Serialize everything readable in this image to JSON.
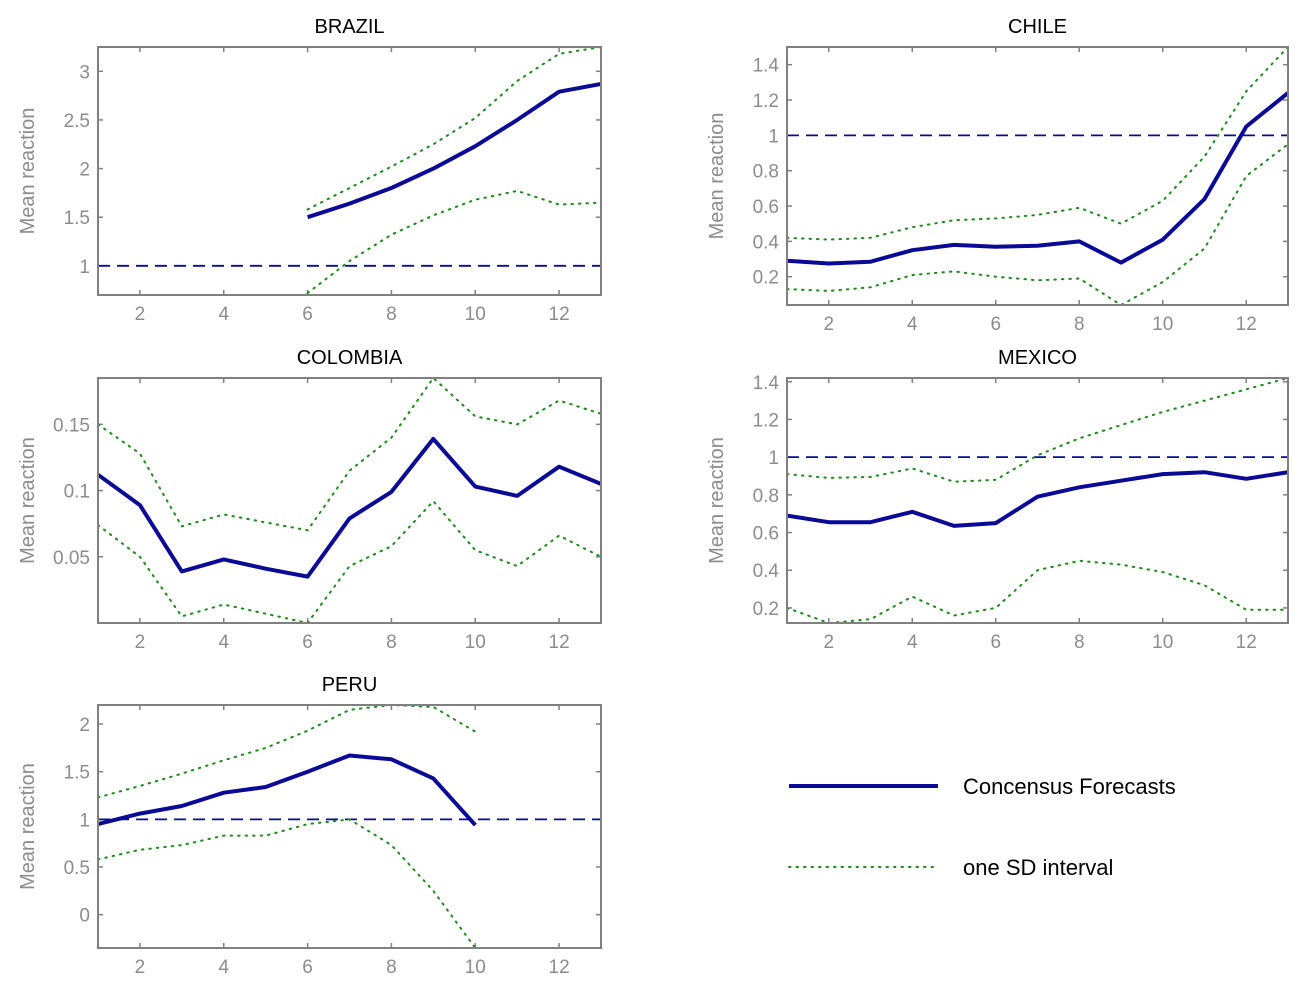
{
  "colors": {
    "main_line": "#0a0a96",
    "ref_line": "#0a0a96",
    "band": "#1a8a1a",
    "axes": "#808080",
    "tick_text": "#8c8c8c"
  },
  "legend": {
    "items": [
      {
        "label": "Concensus Forecasts",
        "style": "solid"
      },
      {
        "label": "one SD interval",
        "style": "dotted"
      }
    ]
  },
  "chart_data": [
    {
      "type": "line",
      "title": "BRAZIL",
      "ylabel": "Mean reaction",
      "xlim": [
        1,
        13
      ],
      "ylim": [
        0.7,
        3.25
      ],
      "xticks": [
        2,
        4,
        6,
        8,
        10,
        12
      ],
      "yticks": [
        1,
        1.5,
        2,
        2.5,
        3
      ],
      "reference": 1,
      "series": [
        {
          "role": "mean",
          "x": [
            6,
            7,
            8,
            9,
            10,
            11,
            12,
            13
          ],
          "y": [
            1.5,
            1.64,
            1.8,
            2.0,
            2.23,
            2.5,
            2.79,
            2.87
          ]
        },
        {
          "role": "upper",
          "x": [
            6,
            7,
            8,
            9,
            10,
            11,
            12,
            13
          ],
          "y": [
            1.58,
            1.8,
            2.02,
            2.25,
            2.52,
            2.9,
            3.18,
            3.25
          ]
        },
        {
          "role": "lower",
          "x": [
            6,
            7,
            8,
            9,
            10,
            11,
            12,
            13
          ],
          "y": [
            0.72,
            1.05,
            1.32,
            1.52,
            1.68,
            1.77,
            1.63,
            1.65
          ]
        }
      ]
    },
    {
      "type": "line",
      "title": "CHILE",
      "ylabel": "Mean reaction",
      "xlim": [
        1,
        13
      ],
      "ylim": [
        0.04,
        1.5
      ],
      "xticks": [
        2,
        4,
        6,
        8,
        10,
        12
      ],
      "yticks": [
        0.2,
        0.4,
        0.6,
        0.8,
        1,
        1.2,
        1.4
      ],
      "reference": 1,
      "series": [
        {
          "role": "mean",
          "x": [
            1,
            2,
            3,
            4,
            5,
            6,
            7,
            8,
            9,
            10,
            11,
            12,
            13
          ],
          "y": [
            0.29,
            0.275,
            0.285,
            0.35,
            0.38,
            0.37,
            0.375,
            0.4,
            0.28,
            0.41,
            0.64,
            1.05,
            1.24
          ]
        },
        {
          "role": "upper",
          "x": [
            1,
            2,
            3,
            4,
            5,
            6,
            7,
            8,
            9,
            10,
            11,
            12,
            13
          ],
          "y": [
            0.42,
            0.41,
            0.42,
            0.48,
            0.52,
            0.53,
            0.55,
            0.59,
            0.5,
            0.63,
            0.88,
            1.25,
            1.5
          ]
        },
        {
          "role": "lower",
          "x": [
            1,
            2,
            3,
            4,
            5,
            6,
            7,
            8,
            9,
            10,
            11,
            12,
            13
          ],
          "y": [
            0.13,
            0.12,
            0.14,
            0.21,
            0.23,
            0.2,
            0.18,
            0.19,
            0.04,
            0.17,
            0.36,
            0.77,
            0.95
          ]
        }
      ]
    },
    {
      "type": "line",
      "title": "COLOMBIA",
      "ylabel": "Mean reaction",
      "xlim": [
        1,
        13
      ],
      "ylim": [
        0.0,
        0.185
      ],
      "xticks": [
        2,
        4,
        6,
        8,
        10,
        12
      ],
      "yticks": [
        0.05,
        0.1,
        0.15
      ],
      "series": [
        {
          "role": "mean",
          "x": [
            1,
            2,
            3,
            4,
            5,
            6,
            7,
            8,
            9,
            10,
            11,
            12,
            13
          ],
          "y": [
            0.112,
            0.089,
            0.039,
            0.048,
            0.041,
            0.035,
            0.079,
            0.099,
            0.139,
            0.103,
            0.096,
            0.118,
            0.105
          ]
        },
        {
          "role": "upper",
          "x": [
            1,
            2,
            3,
            4,
            5,
            6,
            7,
            8,
            9,
            10,
            11,
            12,
            13
          ],
          "y": [
            0.15,
            0.128,
            0.073,
            0.082,
            0.076,
            0.07,
            0.115,
            0.14,
            0.185,
            0.156,
            0.15,
            0.168,
            0.158
          ]
        },
        {
          "role": "lower",
          "x": [
            1,
            2,
            3,
            4,
            5,
            6,
            7,
            8,
            9,
            10,
            11,
            12,
            13
          ],
          "y": [
            0.074,
            0.05,
            0.005,
            0.014,
            0.007,
            0.0,
            0.043,
            0.058,
            0.092,
            0.055,
            0.043,
            0.066,
            0.05
          ]
        }
      ]
    },
    {
      "type": "line",
      "title": "MEXICO",
      "ylabel": "Mean reaction",
      "xlim": [
        1,
        13
      ],
      "ylim": [
        0.12,
        1.42
      ],
      "xticks": [
        2,
        4,
        6,
        8,
        10,
        12
      ],
      "yticks": [
        0.2,
        0.4,
        0.6,
        0.8,
        1,
        1.2,
        1.4
      ],
      "reference": 1,
      "series": [
        {
          "role": "mean",
          "x": [
            1,
            2,
            3,
            4,
            5,
            6,
            7,
            8,
            9,
            10,
            11,
            12,
            13
          ],
          "y": [
            0.69,
            0.655,
            0.655,
            0.71,
            0.635,
            0.65,
            0.79,
            0.84,
            0.875,
            0.91,
            0.92,
            0.885,
            0.92
          ]
        },
        {
          "role": "upper",
          "x": [
            1,
            2,
            3,
            4,
            5,
            6,
            7,
            8,
            9,
            10,
            11,
            12,
            13
          ],
          "y": [
            0.91,
            0.89,
            0.895,
            0.94,
            0.87,
            0.88,
            1.01,
            1.1,
            1.17,
            1.24,
            1.3,
            1.36,
            1.42
          ]
        },
        {
          "role": "lower",
          "x": [
            1,
            2,
            3,
            4,
            5,
            6,
            7,
            8,
            9,
            10,
            11,
            12,
            13
          ],
          "y": [
            0.2,
            0.12,
            0.14,
            0.26,
            0.16,
            0.2,
            0.4,
            0.45,
            0.43,
            0.39,
            0.32,
            0.19,
            0.19
          ]
        }
      ]
    },
    {
      "type": "line",
      "title": "PERU",
      "ylabel": "Mean reaction",
      "xlim": [
        1,
        13
      ],
      "ylim": [
        -0.35,
        2.2
      ],
      "xticks": [
        2,
        4,
        6,
        8,
        10,
        12
      ],
      "yticks": [
        0,
        0.5,
        1,
        1.5,
        2
      ],
      "reference": 1,
      "series": [
        {
          "role": "mean",
          "x": [
            1,
            2,
            3,
            4,
            5,
            6,
            7,
            8,
            9,
            10
          ],
          "y": [
            0.95,
            1.06,
            1.14,
            1.28,
            1.34,
            1.5,
            1.67,
            1.63,
            1.43,
            0.94
          ]
        },
        {
          "role": "upper",
          "x": [
            1,
            2,
            3,
            4,
            5,
            6,
            7,
            8,
            9,
            10
          ],
          "y": [
            1.23,
            1.35,
            1.48,
            1.62,
            1.75,
            1.93,
            2.15,
            2.2,
            2.18,
            1.92
          ]
        },
        {
          "role": "lower",
          "x": [
            1,
            2,
            3,
            4,
            5,
            6,
            7,
            8,
            9,
            10
          ],
          "y": [
            0.58,
            0.68,
            0.73,
            0.83,
            0.83,
            0.95,
            1.0,
            0.73,
            0.25,
            -0.35
          ]
        }
      ]
    }
  ]
}
